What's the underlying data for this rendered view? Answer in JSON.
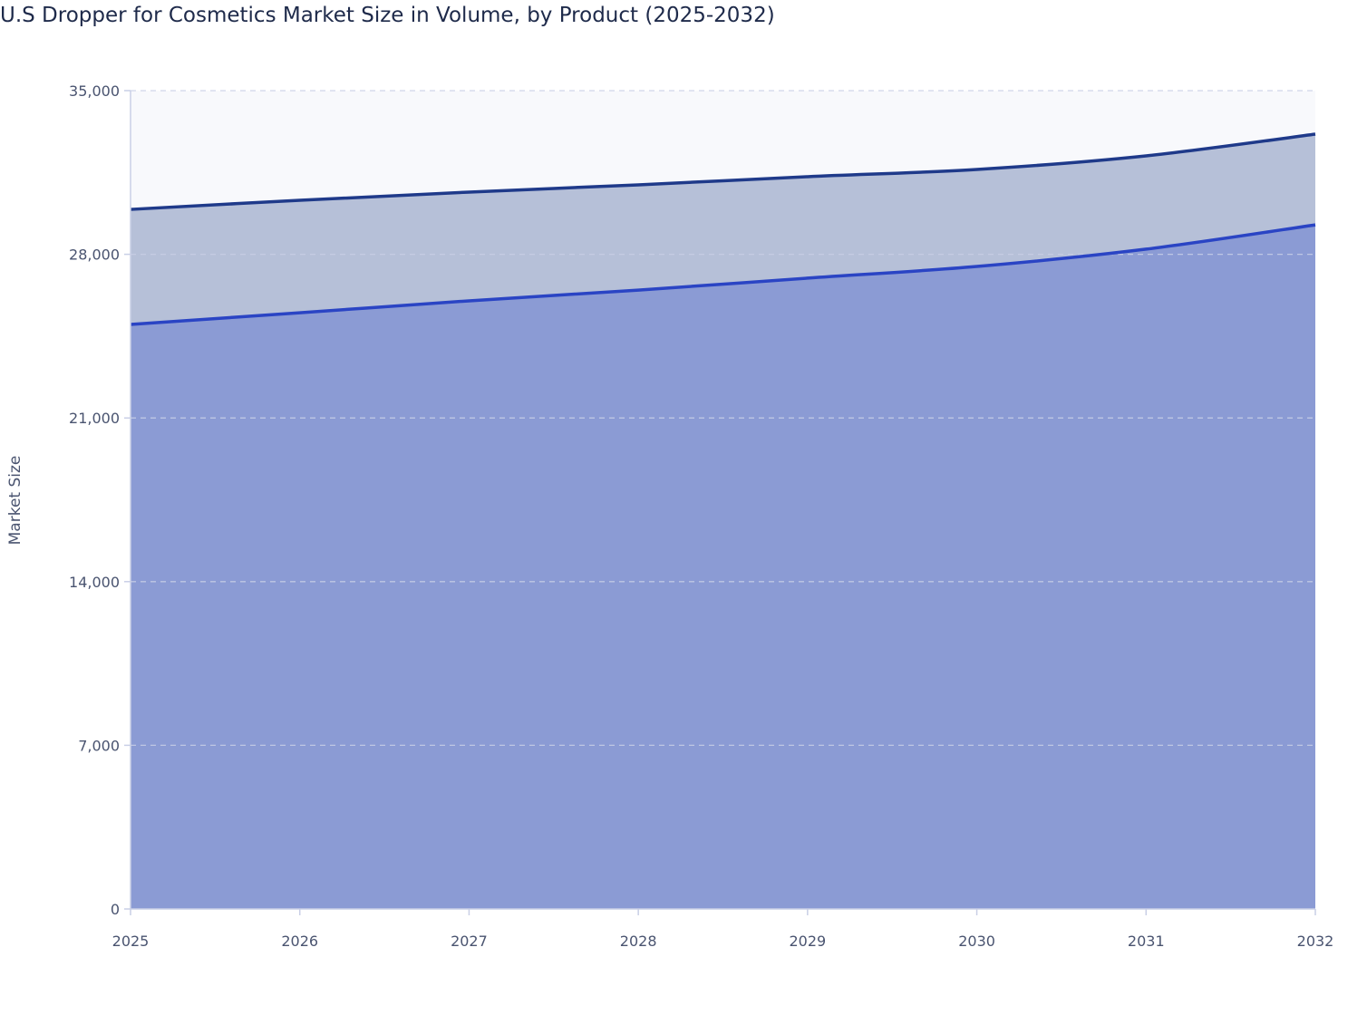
{
  "chart_data": {
    "type": "area",
    "stacked": true,
    "title": "U.S Dropper for Cosmetics Market Size in Volume, by Product (2025-2032)",
    "xlabel": "",
    "ylabel": "Market Size",
    "x": [
      "2025",
      "2026",
      "2027",
      "2028",
      "2029",
      "2030",
      "2031",
      "2032"
    ],
    "yticks": [
      "0",
      "7,000",
      "14,000",
      "21,000",
      "28,000",
      "35,000"
    ],
    "ylim": [
      0,
      35000
    ],
    "grid": true,
    "legend": "none",
    "series": [
      {
        "values": [
          25000,
          25500,
          26010,
          26470,
          26980,
          27480,
          28220,
          29260
        ],
        "fill": "#8b9bd4",
        "line": "#2a44c4"
      },
      {
        "values": [
          4920,
          4810,
          4650,
          4500,
          4340,
          4150,
          3990,
          3880
        ],
        "fill": "#b6c0d8",
        "line": "#1f3a8a"
      }
    ],
    "plot_background": "#f8f9fc"
  }
}
